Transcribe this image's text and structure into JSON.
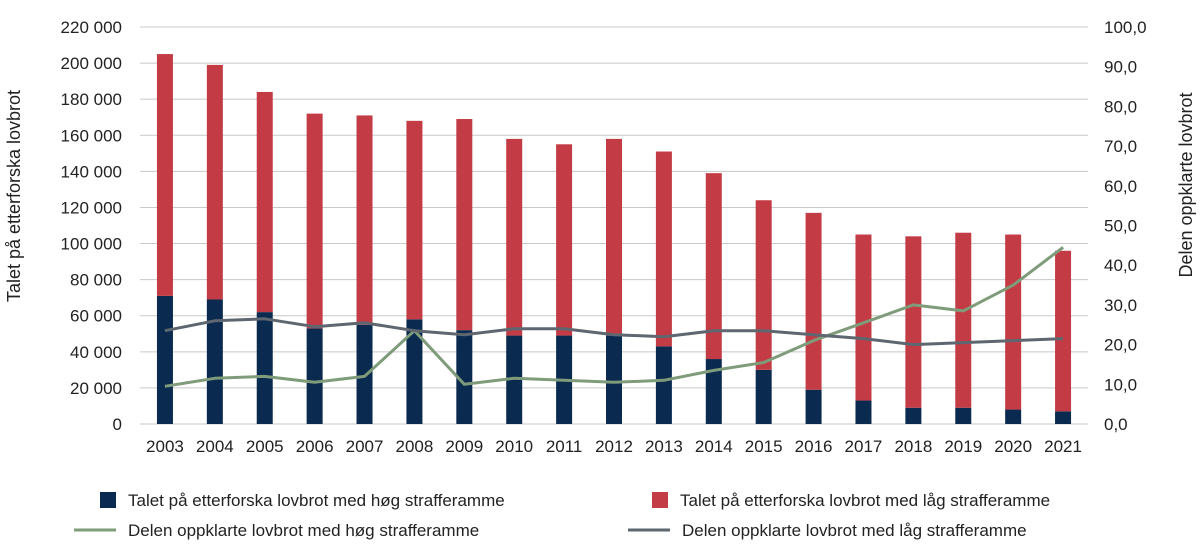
{
  "chart_data": {
    "type": "bar",
    "stacked": true,
    "title": "",
    "categories": [
      "2003",
      "2004",
      "2005",
      "2006",
      "2007",
      "2008",
      "2009",
      "2010",
      "2011",
      "2012",
      "2013",
      "2014",
      "2015",
      "2016",
      "2017",
      "2018",
      "2019",
      "2020",
      "2021"
    ],
    "y_left": {
      "label": "Talet på etterforska lovbrot",
      "range": [
        0,
        220000
      ],
      "ticks": [
        "0",
        "20 000",
        "40 000",
        "60 000",
        "80 000",
        "100 000",
        "120 000",
        "140 000",
        "160 000",
        "180 000",
        "200 000",
        "220 000"
      ]
    },
    "y_right": {
      "label": "Delen oppklarte lovbrot",
      "range": [
        0,
        100
      ],
      "ticks": [
        "0,0",
        "10,0",
        "20,0",
        "30,0",
        "40,0",
        "50,0",
        "60,0",
        "70,0",
        "80,0",
        "90,0",
        "100,0"
      ]
    },
    "grid": true,
    "legend_position": "bottom",
    "series": [
      {
        "name": "Talet på etterforska lovbrot med høg strafferamme",
        "type": "bar",
        "axis": "left",
        "color": "#0b2a4f",
        "values": [
          71000,
          69000,
          62000,
          53000,
          55000,
          58000,
          52000,
          49000,
          49000,
          49000,
          43000,
          36000,
          30000,
          19000,
          13000,
          9000,
          9000,
          8000,
          7000
        ]
      },
      {
        "name": "Talet på etterforska lovbrot med låg strafferamme",
        "type": "bar",
        "axis": "left",
        "color": "#c33b44",
        "values": [
          134000,
          130000,
          122000,
          119000,
          116000,
          110000,
          117000,
          109000,
          106000,
          109000,
          108000,
          103000,
          94000,
          98000,
          92000,
          95000,
          97000,
          97000,
          89000
        ]
      },
      {
        "name": "Delen oppklarte lovbrot med høg strafferamme",
        "type": "line",
        "axis": "right",
        "color": "#7f9c7a",
        "values": [
          9.5,
          11.5,
          12.0,
          10.5,
          12.0,
          23.5,
          10.0,
          11.5,
          11.0,
          10.5,
          11.0,
          13.5,
          15.5,
          21.0,
          25.5,
          30.0,
          28.5,
          35.0,
          44.5
        ]
      },
      {
        "name": "Delen oppklarte lovbrot med låg strafferamme",
        "type": "line",
        "axis": "right",
        "color": "#5e6770",
        "values": [
          23.5,
          26.0,
          26.5,
          24.5,
          25.5,
          23.5,
          22.5,
          24.0,
          24.0,
          22.5,
          22.0,
          23.5,
          23.5,
          22.5,
          21.5,
          20.0,
          20.5,
          21.0,
          21.5
        ]
      }
    ]
  }
}
